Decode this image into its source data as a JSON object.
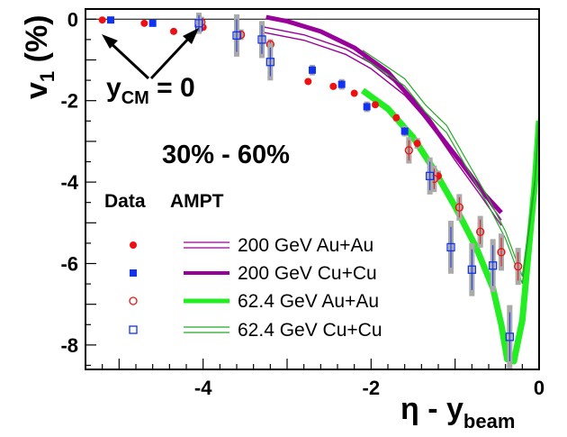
{
  "chart_data": {
    "type": "scatter",
    "xlabel": {
      "main": "η - y",
      "sub": "beam"
    },
    "ylabel": {
      "main": "v",
      "sub": "1",
      "unit": " (%)"
    },
    "xlim": [
      -5.4,
      0
    ],
    "ylim": [
      -8.6,
      0.25
    ],
    "xticks": [
      {
        "value": -4,
        "label": "-4"
      },
      {
        "value": -2,
        "label": "-2"
      },
      {
        "value": 0,
        "label": "0"
      }
    ],
    "yticks": [
      {
        "value": 0,
        "label": "0"
      },
      {
        "value": -2,
        "label": "-2"
      },
      {
        "value": -4,
        "label": "-4"
      },
      {
        "value": -6,
        "label": "-6"
      },
      {
        "value": -8,
        "label": "-8"
      }
    ],
    "annotations": {
      "centrality": "30% - 60%",
      "ycm": {
        "main": "y",
        "sub": "CM",
        "rest": " = 0"
      },
      "data_header": "Data",
      "ampt_header": "AMPT"
    },
    "series": [
      {
        "name": "200 GeV Au+Au",
        "marker": "filled-circle",
        "color": "#ee1111",
        "points": [
          [
            -5.2,
            -0.02
          ],
          [
            -4.7,
            -0.1
          ],
          [
            -4.35,
            -0.3
          ],
          [
            -4.0,
            -0.2
          ],
          [
            -3.55,
            -0.37
          ],
          [
            -3.2,
            -0.6
          ],
          [
            -2.75,
            -1.53
          ],
          [
            -2.45,
            -1.65
          ],
          [
            -2.2,
            -1.82
          ],
          [
            -1.95,
            -2.1
          ],
          [
            -1.7,
            -2.42
          ],
          [
            -1.45,
            -3.05
          ],
          [
            -1.2,
            -3.85
          ],
          [
            -0.95,
            -4.65
          ],
          [
            -0.7,
            -5.25
          ],
          [
            -0.45,
            -5.72
          ]
        ],
        "errors": [
          0,
          0,
          0,
          0,
          0,
          0,
          0.05,
          0.05,
          0.05,
          0.05,
          0.07,
          0.1,
          0.1,
          0.15,
          0.2,
          0.3
        ]
      },
      {
        "name": "200 GeV Cu+Cu",
        "marker": "filled-square",
        "color": "#1133ee",
        "points": [
          [
            -5.1,
            -0.02
          ],
          [
            -4.6,
            -0.1
          ],
          [
            -4.05,
            -0.22
          ],
          [
            -2.7,
            -1.25
          ],
          [
            -2.35,
            -1.6
          ],
          [
            -2.05,
            -2.15
          ],
          [
            -1.6,
            -2.75
          ]
        ],
        "errors": [
          0,
          0,
          0,
          0.1,
          0.1,
          0.1,
          0.1
        ]
      },
      {
        "name": "62.4 GeV Au+Au",
        "marker": "open-circle",
        "color": "#ee1111",
        "points": [
          [
            -4.02,
            -0.07
          ],
          [
            -3.55,
            -0.38
          ],
          [
            -3.2,
            -0.62
          ],
          [
            -1.55,
            -3.22
          ],
          [
            -1.25,
            -3.92
          ],
          [
            -0.95,
            -4.62
          ],
          [
            -0.7,
            -5.22
          ],
          [
            -0.45,
            -5.72
          ],
          [
            -0.25,
            -6.07
          ]
        ],
        "errors": [
          0.1,
          0.1,
          0.1,
          0.25,
          0.25,
          0.25,
          0.3,
          0.35,
          0.35
        ]
      },
      {
        "name": "62.4 GeV Cu+Cu",
        "marker": "open-square",
        "color": "#1133ee",
        "points": [
          [
            -4.05,
            -0.1
          ],
          [
            -3.6,
            -0.4
          ],
          [
            -3.3,
            -0.5
          ],
          [
            -3.2,
            -1.05
          ],
          [
            -1.3,
            -3.85
          ],
          [
            -1.05,
            -5.6
          ],
          [
            -0.8,
            -6.15
          ],
          [
            -0.55,
            -6.05
          ],
          [
            -0.35,
            -7.8
          ]
        ],
        "errors": [
          0.2,
          0.4,
          0.35,
          0.35,
          0.35,
          0.5,
          0.5,
          0.5,
          0.6
        ]
      }
    ],
    "ampt_curves": [
      {
        "name": "200 GeV Au+Au",
        "color": "#990099",
        "style": "double-thin",
        "points": [
          [
            -3.3,
            -0.25
          ],
          [
            -2.8,
            -0.45
          ],
          [
            -2.3,
            -0.8
          ],
          [
            -2.0,
            -1.15
          ],
          [
            -1.6,
            -1.8
          ],
          [
            -1.3,
            -2.5
          ],
          [
            -1.0,
            -3.4
          ],
          [
            -0.7,
            -4.25
          ],
          [
            -0.45,
            -5.0
          ]
        ]
      },
      {
        "name": "200 GeV Cu+Cu",
        "color": "#990099",
        "style": "thick",
        "points": [
          [
            -3.25,
            0.05
          ],
          [
            -3.0,
            -0.05
          ],
          [
            -2.6,
            -0.3
          ],
          [
            -2.2,
            -0.7
          ],
          [
            -1.8,
            -1.3
          ],
          [
            -1.5,
            -2.0
          ],
          [
            -1.2,
            -2.8
          ],
          [
            -0.9,
            -3.6
          ],
          [
            -0.65,
            -4.3
          ],
          [
            -0.45,
            -4.75
          ]
        ]
      },
      {
        "name": "62.4 GeV Au+Au",
        "color": "#22ee22",
        "style": "thick-band",
        "points": [
          [
            -2.1,
            -1.75
          ],
          [
            -1.8,
            -2.2
          ],
          [
            -1.5,
            -2.9
          ],
          [
            -1.25,
            -3.7
          ],
          [
            -1.0,
            -4.6
          ],
          [
            -0.75,
            -5.6
          ],
          [
            -0.55,
            -6.6
          ],
          [
            -0.45,
            -7.5
          ],
          [
            -0.38,
            -8.35
          ],
          [
            -0.3,
            -8.4
          ],
          [
            -0.2,
            -7.4
          ],
          [
            -0.05,
            -4.0
          ],
          [
            0.0,
            -2.5
          ]
        ]
      },
      {
        "name": "62.4 GeV Cu+Cu",
        "color": "#22aa22",
        "style": "double-thin-green",
        "points": [
          [
            -2.1,
            -0.85
          ],
          [
            -1.85,
            -1.2
          ],
          [
            -1.6,
            -1.55
          ],
          [
            -1.35,
            -2.2
          ],
          [
            -1.1,
            -2.7
          ],
          [
            -0.85,
            -3.6
          ],
          [
            -0.6,
            -4.5
          ],
          [
            -0.4,
            -5.3
          ],
          [
            -0.2,
            -6.4
          ],
          [
            -0.05,
            -4.0
          ],
          [
            0.0,
            -2.3
          ]
        ]
      }
    ]
  }
}
